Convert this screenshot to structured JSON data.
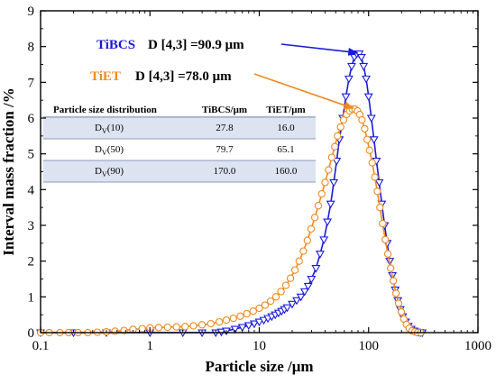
{
  "chart_data": {
    "type": "line",
    "xlabel": "Particle size /μm",
    "ylabel": "Interval mass fraction /%",
    "xscale": "log",
    "xlim": [
      0.1,
      1000
    ],
    "ylim": [
      0,
      9
    ],
    "x_ticks": [
      "0.1",
      "1",
      "10",
      "100",
      "1000"
    ],
    "y_ticks": [
      "0",
      "1",
      "2",
      "3",
      "4",
      "5",
      "6",
      "7",
      "8",
      "9"
    ],
    "grid": false,
    "series": [
      {
        "name": "TiBCS",
        "color": "#1a1adb",
        "marker": "triangle-down",
        "x": [
          0.1,
          0.2,
          0.4,
          1,
          2,
          3,
          4,
          4.5,
          5,
          6,
          7,
          8,
          9,
          10,
          11,
          12,
          13,
          14,
          15,
          16,
          17,
          18,
          20,
          22,
          24,
          26,
          28,
          30,
          33,
          36,
          39,
          42,
          45,
          48,
          51,
          54,
          58,
          62,
          66,
          70,
          74,
          78,
          82,
          86,
          90,
          95,
          100,
          106,
          112,
          118,
          125,
          132,
          140,
          148,
          156,
          165,
          175,
          185,
          195,
          205,
          218,
          231,
          245,
          260,
          275,
          290,
          300,
          310
        ],
        "y": [
          0,
          0,
          0,
          0,
          0,
          0,
          0,
          0.02,
          0.05,
          0.1,
          0.15,
          0.2,
          0.25,
          0.3,
          0.35,
          0.4,
          0.45,
          0.5,
          0.55,
          0.6,
          0.65,
          0.7,
          0.8,
          0.9,
          1.0,
          1.15,
          1.3,
          1.5,
          1.8,
          2.2,
          2.6,
          3.1,
          3.6,
          4.2,
          4.8,
          5.4,
          6.0,
          6.6,
          7.1,
          7.45,
          7.7,
          7.8,
          7.8,
          7.7,
          7.45,
          7.1,
          6.6,
          6.0,
          5.4,
          4.8,
          4.2,
          3.6,
          3.0,
          2.5,
          2.0,
          1.6,
          1.2,
          0.9,
          0.65,
          0.45,
          0.3,
          0.18,
          0.1,
          0.05,
          0.02,
          0.01,
          0,
          0
        ]
      },
      {
        "name": "TiET",
        "color": "#f08a1e",
        "marker": "circle",
        "x": [
          0.1,
          0.12,
          0.15,
          0.18,
          0.22,
          0.27,
          0.33,
          0.4,
          0.48,
          0.58,
          0.7,
          0.85,
          1.0,
          1.2,
          1.45,
          1.75,
          2.1,
          2.5,
          3.0,
          3.6,
          4.3,
          5.0,
          5.8,
          6.7,
          7.7,
          8.8,
          10,
          11.3,
          12.7,
          14.2,
          15.8,
          17.5,
          19.3,
          21.2,
          23.2,
          25.3,
          27.5,
          29.8,
          32.2,
          34.7,
          37.3,
          40,
          43,
          46,
          49,
          52,
          55.5,
          59,
          63,
          67,
          71,
          75,
          79,
          83,
          87,
          92,
          97,
          102,
          108,
          114,
          120,
          127,
          134,
          142,
          150,
          159,
          168,
          178,
          188,
          199,
          210,
          222,
          235,
          249,
          264,
          280,
          300
        ],
        "y": [
          0,
          0,
          0,
          0,
          0,
          0,
          0.01,
          0.02,
          0.04,
          0.06,
          0.09,
          0.11,
          0.13,
          0.14,
          0.15,
          0.16,
          0.17,
          0.19,
          0.22,
          0.25,
          0.3,
          0.35,
          0.4,
          0.46,
          0.53,
          0.6,
          0.68,
          0.77,
          0.88,
          1.0,
          1.15,
          1.32,
          1.52,
          1.75,
          2.0,
          2.28,
          2.58,
          2.9,
          3.22,
          3.55,
          3.88,
          4.2,
          4.55,
          4.9,
          5.2,
          5.5,
          5.75,
          5.95,
          6.1,
          6.2,
          6.25,
          6.25,
          6.2,
          6.1,
          5.95,
          5.7,
          5.4,
          5.1,
          4.75,
          4.35,
          3.95,
          3.5,
          3.05,
          2.6,
          2.2,
          1.8,
          1.45,
          1.1,
          0.82,
          0.58,
          0.38,
          0.23,
          0.12,
          0.05,
          0.02,
          0,
          0
        ]
      }
    ],
    "annotations": [
      {
        "name": "TiBCS",
        "value": "D [4,3] =90.9 μm",
        "color": "#1a1adb",
        "arrow_to": [
          82,
          7.8
        ]
      },
      {
        "name": "TiET",
        "value": "D [4,3] =78.0 μm",
        "color": "#f08a1e",
        "arrow_to": [
          75,
          6.25
        ]
      }
    ],
    "table": {
      "headers": [
        "Particle size distribution",
        "TiBCS/μm",
        "TiET/μm"
      ],
      "rows": [
        {
          "label_main": "D",
          "label_sub": "V",
          "label_tail": "(10)",
          "tibcs": "27.8",
          "tiet": "16.0",
          "shaded": true
        },
        {
          "label_main": "D",
          "label_sub": "V",
          "label_tail": "(50)",
          "tibcs": "79.7",
          "tiet": "65.1",
          "shaded": false
        },
        {
          "label_main": "D",
          "label_sub": "V",
          "label_tail": "(90)",
          "tibcs": "170.0",
          "tiet": "160.0",
          "shaded": true
        }
      ]
    }
  }
}
